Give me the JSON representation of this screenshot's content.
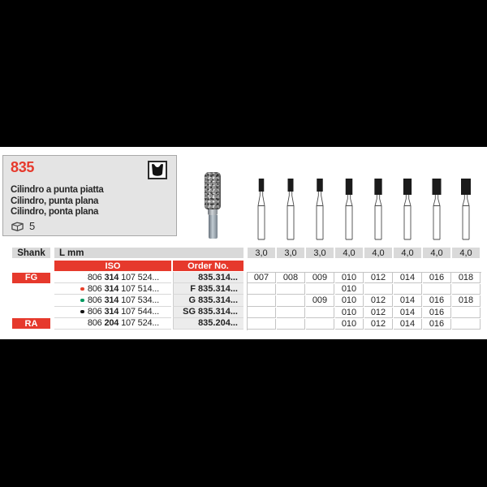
{
  "panel": {
    "code": "835",
    "names": [
      "Cilindro a punta piatta",
      "Cilindro, punta plana",
      "Cilindro, ponta plana"
    ],
    "pack_qty": "5"
  },
  "figure": {
    "head_widths": [
      6.5,
      7,
      7.5,
      8.5,
      9.3,
      10.2,
      11,
      12
    ],
    "head_heights": [
      16,
      16,
      16,
      20,
      20,
      20,
      20,
      20
    ]
  },
  "table": {
    "shank_header": "Shank",
    "l_header": "L mm",
    "l_values": [
      "3,0",
      "3,0",
      "3,0",
      "4,0",
      "4,0",
      "4,0",
      "4,0",
      "4,0"
    ],
    "iso_header": "ISO",
    "order_header": "Order No.",
    "rows": [
      {
        "shank": "FG",
        "dot": null,
        "iso_pre": "806",
        "iso_bold": "314",
        "iso_post": "107 524...",
        "order": "835.314...",
        "sizes": [
          "007",
          "008",
          "009",
          "010",
          "012",
          "014",
          "016",
          "018"
        ]
      },
      {
        "shank": null,
        "dot": "red",
        "iso_pre": "806",
        "iso_bold": "314",
        "iso_post": "107 514...",
        "order": "F 835.314...",
        "sizes": [
          "",
          "",
          "",
          "010",
          "",
          "",
          "",
          ""
        ]
      },
      {
        "shank": null,
        "dot": "green",
        "iso_pre": "806",
        "iso_bold": "314",
        "iso_post": "107 534...",
        "order": "G 835.314...",
        "sizes": [
          "",
          "",
          "009",
          "010",
          "012",
          "014",
          "016",
          "018"
        ]
      },
      {
        "shank": null,
        "dot": "black",
        "iso_pre": "806",
        "iso_bold": "314",
        "iso_post": "107 544...",
        "order": "SG 835.314...",
        "sizes": [
          "",
          "",
          "",
          "010",
          "012",
          "014",
          "016",
          ""
        ]
      },
      {
        "shank": "RA",
        "dot": null,
        "iso_pre": "806",
        "iso_bold": "204",
        "iso_post": "107 524...",
        "order": "835.204...",
        "sizes": [
          "",
          "",
          "",
          "010",
          "012",
          "014",
          "016",
          ""
        ]
      }
    ]
  },
  "colors": {
    "accent_red": "#e6392c",
    "dot_red": "#e8402a",
    "dot_green": "#009a60",
    "dot_black": "#141414"
  }
}
